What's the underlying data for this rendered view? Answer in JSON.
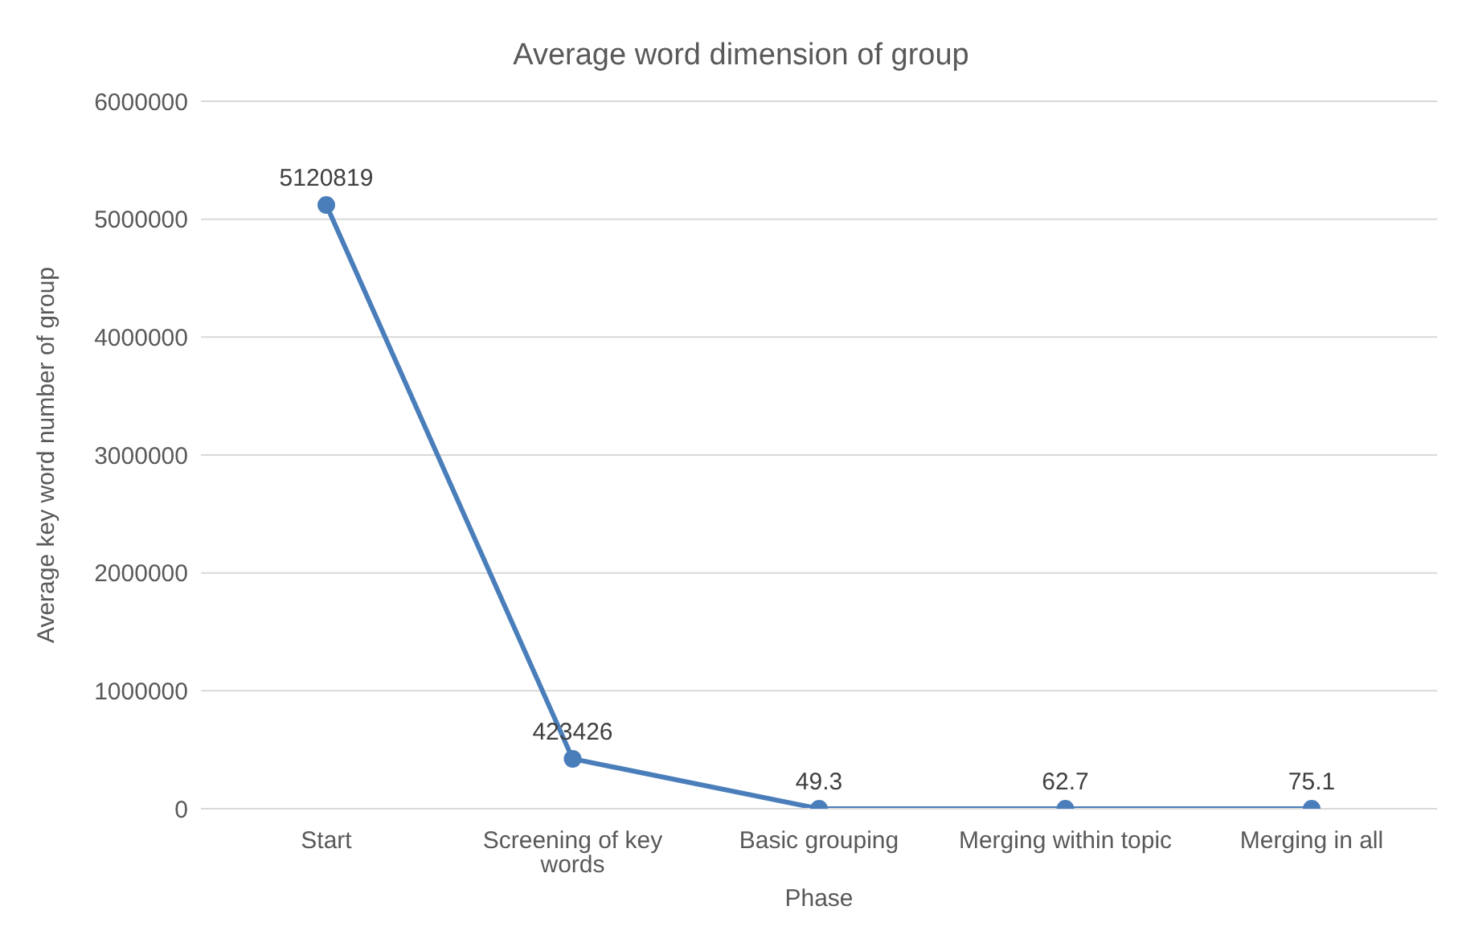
{
  "chart_data": {
    "type": "line",
    "title": "Average word dimension of group",
    "xlabel": "Phase",
    "ylabel": "Average key word number of group",
    "categories": [
      "Start",
      "Screening of key words",
      "Basic grouping",
      "Merging within topic",
      "Merging in all"
    ],
    "series": [
      {
        "color": "#4a7ebb",
        "values": [
          5120819,
          423426,
          49.3,
          62.7,
          75.1
        ]
      }
    ],
    "ylim": [
      0,
      6000000
    ],
    "yticks": [
      0,
      1000000,
      2000000,
      3000000,
      4000000,
      5000000,
      6000000
    ],
    "grid": "y",
    "legend": false,
    "marker": "circle",
    "line_style": "solid",
    "data_labels": true
  }
}
